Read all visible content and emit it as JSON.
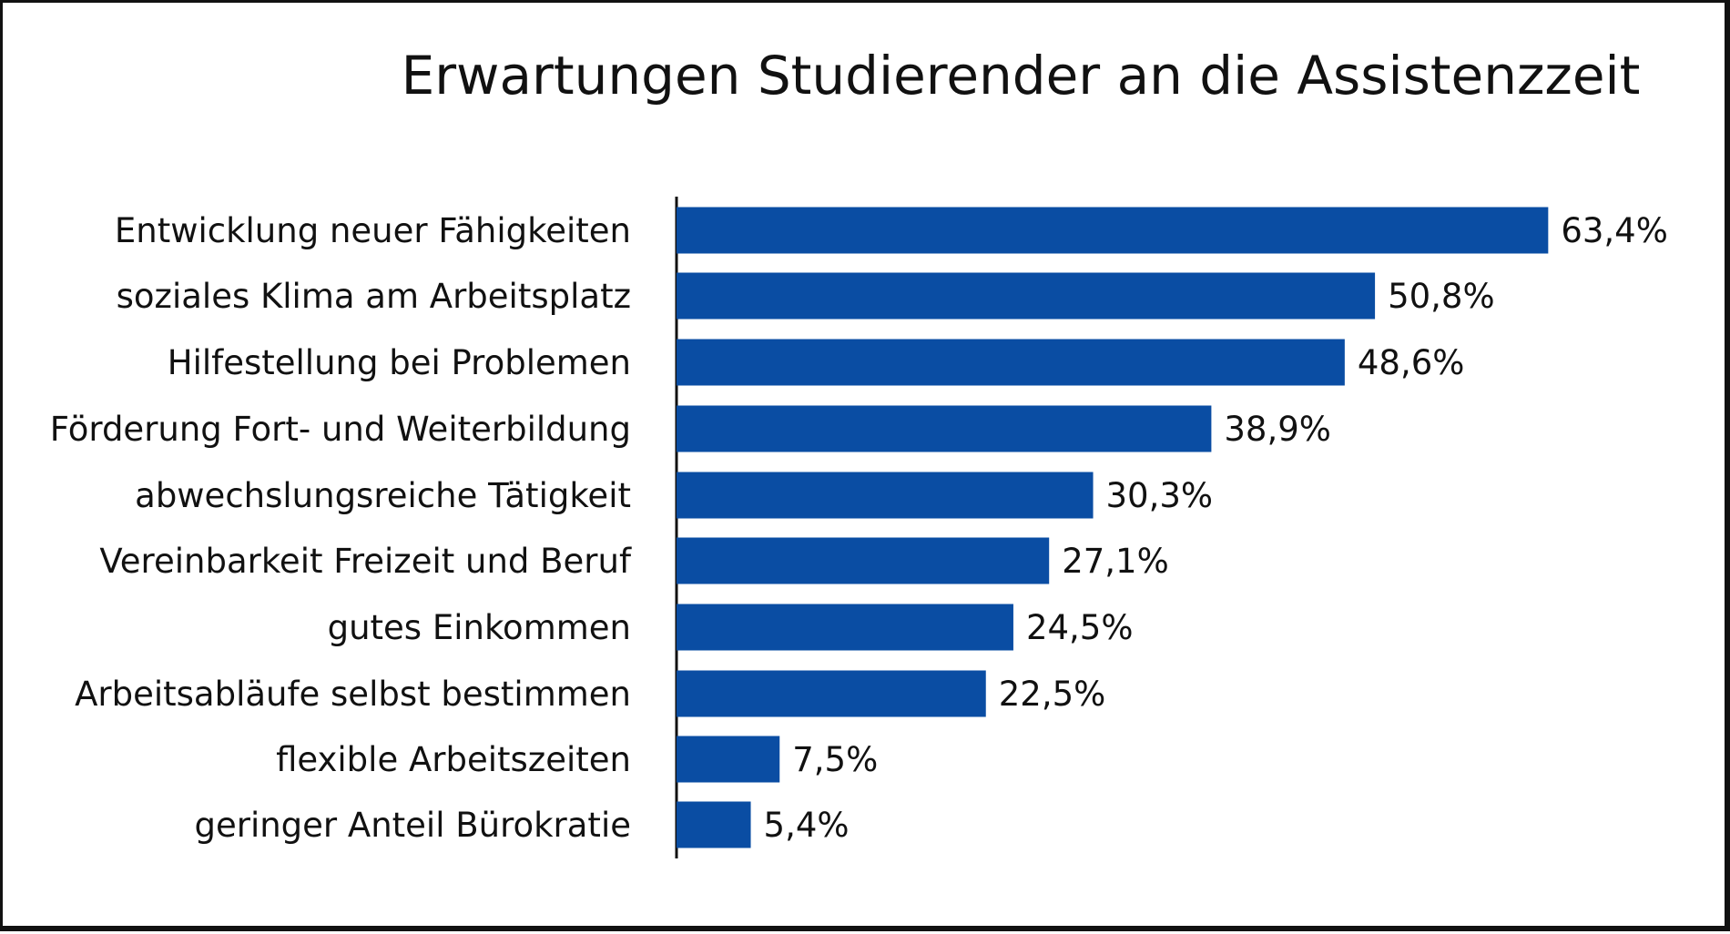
{
  "chart_data": {
    "type": "bar",
    "orientation": "horizontal",
    "title": "Erwartungen Studierender an die Assistenzzeit",
    "categories": [
      "Entwicklung neuer Fähigkeiten",
      "soziales Klima am Arbeitsplatz",
      "Hilfestellung bei Problemen",
      "Förderung Fort- und Weiterbildung",
      "abwechslungsreiche Tätigkeit",
      "Vereinbarkeit Freizeit und Beruf",
      "gutes Einkommen",
      "Arbeitsabläufe selbst bestimmen",
      "flexible Arbeitszeiten",
      "geringer Anteil Bürokratie"
    ],
    "values": [
      63.4,
      50.8,
      48.6,
      38.9,
      30.3,
      27.1,
      24.5,
      22.5,
      7.5,
      5.4
    ],
    "value_labels": [
      "63,4%",
      "50,8%",
      "48,6%",
      "38,9%",
      "30,3%",
      "27,1%",
      "24,5%",
      "22,5%",
      "7,5%",
      "5,4%"
    ],
    "unit": "%",
    "grid": false,
    "legend": "none",
    "bar_color": "#0a4da3",
    "axis_color": "#111111"
  }
}
